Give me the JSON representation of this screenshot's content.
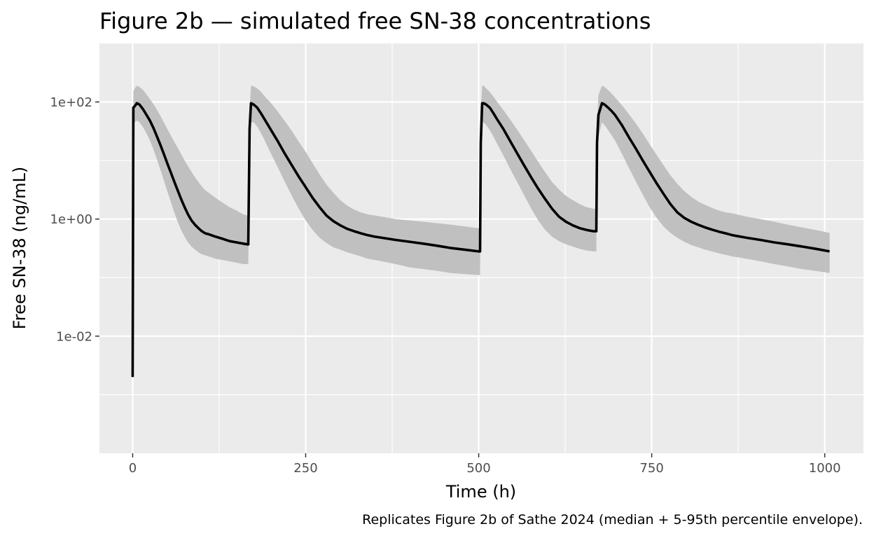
{
  "chart_data": {
    "type": "line",
    "title": "Figure 2b — simulated free SN-38 concentrations",
    "xlabel": "Time (h)",
    "ylabel": "Free SN-38 (ng/mL)",
    "caption": "Replicates Figure 2b of Sathe 2024 (median + 5-95th percentile envelope).",
    "y_scale": "log10",
    "xlim": [
      -48,
      1056
    ],
    "ylim": [
      0.0001,
      1000
    ],
    "x_ticks": [
      0,
      250,
      500,
      750,
      1000
    ],
    "x_tick_labels": [
      "0",
      "250",
      "500",
      "750",
      "1000"
    ],
    "y_ticks": [
      0.01,
      1,
      100
    ],
    "y_tick_labels": [
      "1e-02",
      "1e+00",
      "1e+02"
    ],
    "grid": true,
    "series": [
      {
        "name": "median",
        "color": "#000000",
        "x": [
          0,
          1,
          3,
          6,
          10,
          15,
          20,
          25,
          30,
          35,
          40,
          45,
          50,
          55,
          60,
          65,
          70,
          75,
          80,
          85,
          90,
          95,
          100,
          105,
          110,
          120,
          130,
          140,
          150,
          160,
          166,
          167,
          169,
          171,
          175,
          180,
          185,
          190,
          200,
          210,
          220,
          230,
          240,
          250,
          260,
          270,
          280,
          290,
          300,
          310,
          320,
          330,
          340,
          350,
          360,
          380,
          400,
          420,
          440,
          460,
          480,
          500,
          502,
          503,
          505,
          507,
          511,
          516,
          521,
          526,
          536,
          546,
          556,
          566,
          576,
          586,
          596,
          606,
          616,
          626,
          636,
          646,
          656,
          666,
          668,
          670,
          671,
          673,
          678,
          682,
          687,
          692,
          697,
          707,
          717,
          727,
          737,
          747,
          757,
          767,
          777,
          787,
          797,
          807,
          817,
          827,
          837,
          847,
          857,
          867,
          887,
          907,
          927,
          947,
          967,
          987,
          1007
        ],
        "values": [
          0.002,
          80,
          85,
          95,
          90,
          75,
          60,
          48,
          36,
          26,
          18.5,
          13,
          9,
          6.3,
          4.4,
          3.1,
          2.2,
          1.6,
          1.2,
          0.95,
          0.8,
          0.7,
          0.62,
          0.57,
          0.55,
          0.5,
          0.46,
          0.42,
          0.4,
          0.38,
          0.37,
          0.37,
          35,
          95,
          90,
          80,
          65,
          52,
          33,
          21,
          13,
          8.3,
          5.3,
          3.5,
          2.3,
          1.6,
          1.15,
          0.92,
          0.78,
          0.68,
          0.62,
          0.57,
          0.53,
          0.5,
          0.48,
          0.44,
          0.41,
          0.38,
          0.35,
          0.32,
          0.3,
          0.28,
          0.28,
          20,
          95,
          95,
          90,
          80,
          65,
          52,
          34,
          21,
          13,
          8.1,
          5.1,
          3.3,
          2.2,
          1.5,
          1.1,
          0.9,
          0.78,
          0.7,
          0.65,
          0.62,
          0.62,
          0.62,
          20,
          60,
          95,
          90,
          80,
          70,
          60,
          40,
          25,
          16,
          10,
          6.4,
          4.1,
          2.7,
          1.8,
          1.3,
          1.05,
          0.9,
          0.8,
          0.72,
          0.66,
          0.61,
          0.57,
          0.53,
          0.48,
          0.44,
          0.4,
          0.37,
          0.34,
          0.31,
          0.28
        ]
      },
      {
        "name": "5th percentile",
        "color": "#bebebe",
        "x": [
          0,
          1,
          3,
          6,
          10,
          15,
          20,
          25,
          30,
          35,
          40,
          45,
          50,
          55,
          60,
          65,
          70,
          75,
          80,
          85,
          90,
          95,
          100,
          105,
          110,
          120,
          130,
          140,
          150,
          160,
          166,
          167,
          169,
          171,
          175,
          180,
          185,
          190,
          200,
          210,
          220,
          230,
          240,
          250,
          260,
          270,
          280,
          290,
          300,
          310,
          320,
          330,
          340,
          350,
          360,
          380,
          400,
          420,
          440,
          460,
          480,
          500,
          502,
          503,
          505,
          507,
          511,
          516,
          521,
          526,
          536,
          546,
          556,
          566,
          576,
          586,
          596,
          606,
          616,
          626,
          636,
          646,
          656,
          666,
          668,
          670,
          671,
          673,
          678,
          682,
          687,
          692,
          697,
          707,
          717,
          727,
          737,
          747,
          757,
          767,
          777,
          787,
          797,
          807,
          817,
          827,
          837,
          847,
          857,
          867,
          887,
          907,
          927,
          947,
          967,
          987,
          1007
        ],
        "values": [
          0.002,
          40,
          45,
          48,
          45,
          37,
          29,
          22,
          15.5,
          10.5,
          7,
          4.6,
          3,
          2,
          1.3,
          0.9,
          0.65,
          0.5,
          0.4,
          0.34,
          0.3,
          0.27,
          0.25,
          0.24,
          0.23,
          0.21,
          0.2,
          0.19,
          0.18,
          0.17,
          0.17,
          0.17,
          15,
          45,
          45,
          38,
          30,
          23,
          13,
          7.5,
          4.3,
          2.5,
          1.5,
          0.95,
          0.65,
          0.48,
          0.39,
          0.33,
          0.3,
          0.27,
          0.25,
          0.23,
          0.21,
          0.2,
          0.19,
          0.17,
          0.15,
          0.14,
          0.13,
          0.12,
          0.115,
          0.11,
          0.11,
          10,
          45,
          45,
          40,
          33,
          26,
          20,
          12,
          7,
          4.2,
          2.5,
          1.5,
          0.95,
          0.65,
          0.5,
          0.42,
          0.37,
          0.34,
          0.31,
          0.29,
          0.28,
          0.28,
          0.28,
          10,
          25,
          45,
          40,
          33,
          27,
          22,
          13,
          7.5,
          4.4,
          2.6,
          1.6,
          1.05,
          0.75,
          0.58,
          0.48,
          0.41,
          0.36,
          0.33,
          0.3,
          0.28,
          0.26,
          0.245,
          0.23,
          0.21,
          0.19,
          0.17,
          0.155,
          0.14,
          0.13,
          0.12
        ]
      },
      {
        "name": "95th percentile",
        "color": "#bebebe",
        "x": [
          0,
          1,
          3,
          6,
          10,
          15,
          20,
          25,
          30,
          35,
          40,
          45,
          50,
          55,
          60,
          65,
          70,
          75,
          80,
          85,
          90,
          95,
          100,
          105,
          110,
          120,
          130,
          140,
          150,
          160,
          166,
          167,
          169,
          171,
          175,
          180,
          185,
          190,
          200,
          210,
          220,
          230,
          240,
          250,
          260,
          270,
          280,
          290,
          300,
          310,
          320,
          330,
          340,
          350,
          360,
          380,
          400,
          420,
          440,
          460,
          480,
          500,
          502,
          503,
          505,
          507,
          511,
          516,
          521,
          526,
          536,
          546,
          556,
          566,
          576,
          586,
          596,
          606,
          616,
          626,
          636,
          646,
          656,
          666,
          668,
          670,
          671,
          673,
          678,
          682,
          687,
          692,
          697,
          707,
          717,
          727,
          737,
          747,
          757,
          767,
          777,
          787,
          797,
          807,
          817,
          827,
          837,
          847,
          857,
          867,
          887,
          907,
          927,
          947,
          967,
          987,
          1007
        ],
        "values": [
          0.002,
          150,
          170,
          190,
          180,
          160,
          135,
          112,
          92,
          74,
          58,
          45,
          35,
          27,
          21,
          16.5,
          13,
          10,
          8,
          6.4,
          5.2,
          4.3,
          3.6,
          3.1,
          2.8,
          2.3,
          1.9,
          1.6,
          1.4,
          1.2,
          1.15,
          1.15,
          70,
          190,
          185,
          170,
          150,
          128,
          95,
          68,
          47,
          32,
          21,
          14,
          9,
          5.8,
          3.9,
          2.8,
          2.1,
          1.7,
          1.45,
          1.3,
          1.2,
          1.15,
          1.1,
          1.0,
          0.95,
          0.9,
          0.85,
          0.8,
          0.75,
          0.7,
          0.7,
          70,
          190,
          190,
          170,
          148,
          125,
          103,
          72,
          49,
          33,
          22,
          14.5,
          9.5,
          6.3,
          4.3,
          3.2,
          2.5,
          2.1,
          1.8,
          1.6,
          1.5,
          1.5,
          1.5,
          40,
          130,
          190,
          180,
          160,
          140,
          120,
          88,
          62,
          43,
          29,
          19,
          12.5,
          8.3,
          5.6,
          4,
          3,
          2.4,
          2,
          1.75,
          1.55,
          1.4,
          1.3,
          1.25,
          1.1,
          1.0,
          0.9,
          0.8,
          0.72,
          0.65,
          0.58
        ]
      }
    ]
  }
}
